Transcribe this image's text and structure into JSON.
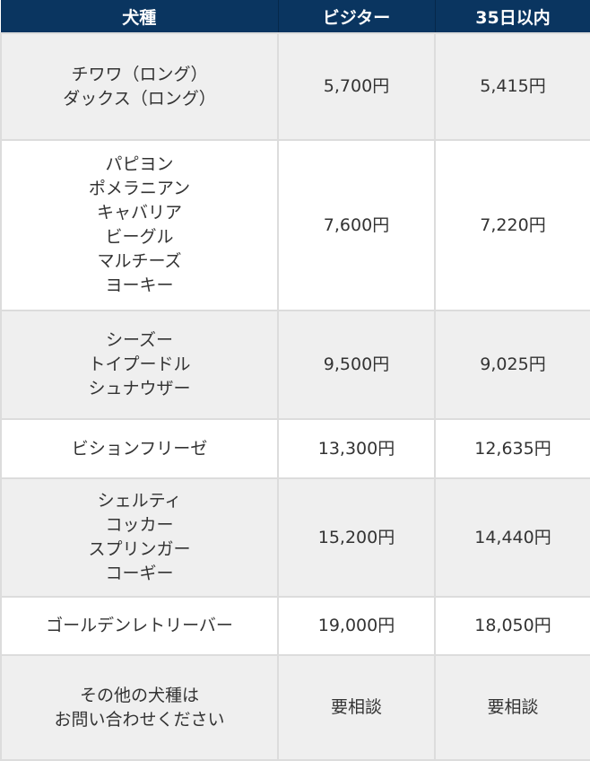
{
  "header": {
    "breed": "犬種",
    "visitor": "ビジター",
    "within35": "35日以内"
  },
  "colors": {
    "header_bg": "#0a3560",
    "odd_row": "#efefef",
    "even_row": "#ffffff"
  },
  "rows": [
    {
      "breeds": [
        "チワワ（ロング）",
        "ダックス（ロング）"
      ],
      "visitor": "5,700円",
      "within35": "5,415円"
    },
    {
      "breeds": [
        "パピヨン",
        "ポメラニアン",
        "キャバリア",
        "ビーグル",
        "マルチーズ",
        "ヨーキー"
      ],
      "visitor": "7,600円",
      "within35": "7,220円"
    },
    {
      "breeds": [
        "シーズー",
        "トイプードル",
        "シュナウザー"
      ],
      "visitor": "9,500円",
      "within35": "9,025円"
    },
    {
      "breeds": [
        "ビションフリーゼ"
      ],
      "visitor": "13,300円",
      "within35": "12,635円"
    },
    {
      "breeds": [
        "シェルティ",
        "コッカー",
        "スプリンガー",
        "コーギー"
      ],
      "visitor": "15,200円",
      "within35": "14,440円"
    },
    {
      "breeds": [
        "ゴールデンレトリーバー"
      ],
      "visitor": "19,000円",
      "within35": "18,050円"
    },
    {
      "breeds": [
        "その他の犬種は",
        "お問い合わせください"
      ],
      "visitor": "要相談",
      "within35": "要相談"
    }
  ]
}
